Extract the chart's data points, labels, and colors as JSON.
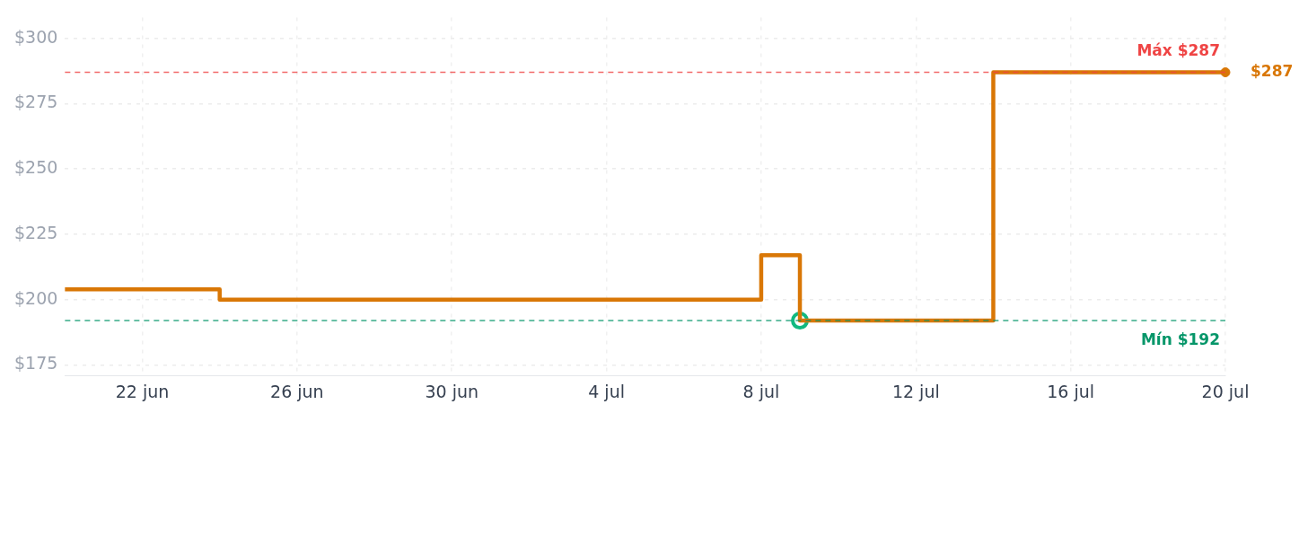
{
  "chart_data": {
    "type": "step",
    "x": [
      "--06-20",
      "--06-24",
      "--07-08",
      "--07-09",
      "--07-14",
      "--07-20"
    ],
    "series": [
      {
        "color": "#d97706",
        "values": [
          204,
          200,
          217,
          192,
          287,
          287
        ],
        "marker": "none"
      },
      {
        "type": "scatter",
        "x": [
          "--07-20"
        ],
        "color": "#d97706",
        "values": [
          287
        ],
        "marker": "circle"
      },
      {
        "type": "scatter",
        "x": [
          "--07-09"
        ],
        "color": "#10b981",
        "values": [
          192
        ],
        "marker": "circle"
      }
    ],
    "xlim": [
      "--06-20",
      "--07-20"
    ],
    "xticks": [
      {
        "value": "--06-22",
        "label": "22 jun"
      },
      {
        "value": "--06-26",
        "label": "26 jun"
      },
      {
        "value": "--06-30",
        "label": "30 jun"
      },
      {
        "value": "--07-04",
        "label": "4 jul"
      },
      {
        "value": "--07-08",
        "label": "8 jul"
      },
      {
        "value": "--07-12",
        "label": "12 jul"
      },
      {
        "value": "--07-16",
        "label": "16 jul"
      },
      {
        "value": "--07-20",
        "label": "20 jul"
      }
    ],
    "ylim": [
      171,
      308
    ],
    "yticks": [
      {
        "value": 175,
        "label": "$175"
      },
      {
        "value": 200,
        "label": "$200"
      },
      {
        "value": 225,
        "label": "$225"
      },
      {
        "value": 250,
        "label": "$250"
      },
      {
        "value": 275,
        "label": "$275"
      },
      {
        "value": 300,
        "label": "$300"
      }
    ],
    "ref_lines": [
      {
        "axis": "y",
        "value": 287,
        "label": "Máx $287",
        "color": "#ef4444",
        "line_style": "dashed"
      },
      {
        "axis": "y",
        "value": 192,
        "label": "Mín $192",
        "color": "#059669",
        "line_style": "dashed"
      }
    ],
    "annotations": [
      {
        "text": "$287",
        "x": "--07-20",
        "y": 287
      }
    ],
    "grid": true,
    "legend": false
  }
}
